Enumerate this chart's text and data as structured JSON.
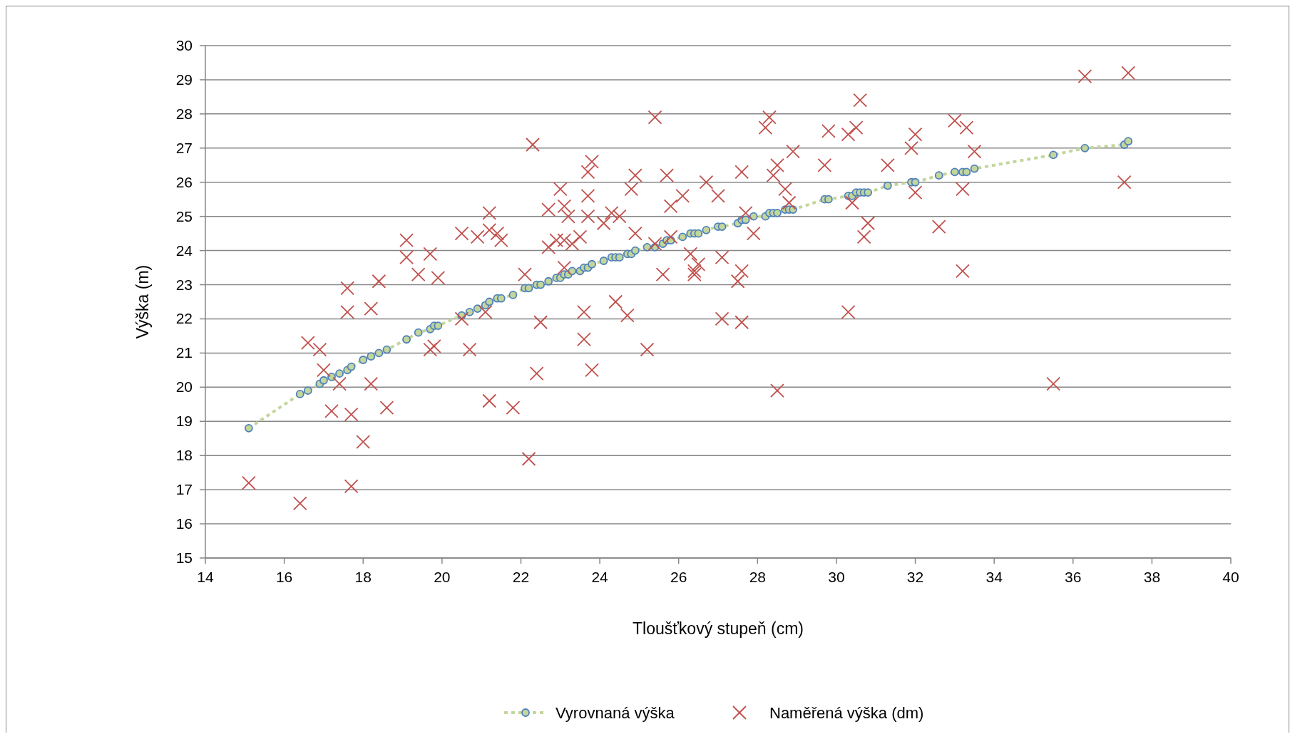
{
  "chart_data": {
    "type": "scatter",
    "xlabel": "Tloušťkový stupeň (cm)",
    "ylabel": "Výška (m)",
    "xlim": [
      14,
      40
    ],
    "xticks": [
      14,
      16,
      18,
      20,
      22,
      24,
      26,
      28,
      30,
      32,
      34,
      36,
      38,
      40
    ],
    "ylim": [
      15,
      30
    ],
    "yticks": [
      15,
      16,
      17,
      18,
      19,
      20,
      21,
      22,
      23,
      24,
      25,
      26,
      27,
      28,
      29,
      30
    ],
    "grid": "y",
    "legend": "bottom",
    "series": [
      {
        "name": "Vyrovnaná výška",
        "type": "line",
        "color": "#c3d69b",
        "marker": "circle",
        "line_style": "dotted",
        "x": [
          15.1,
          16.4,
          16.6,
          16.9,
          17.0,
          17.2,
          17.4,
          17.6,
          17.7,
          18.0,
          18.2,
          18.4,
          18.6,
          19.1,
          19.4,
          19.7,
          19.8,
          19.9,
          20.5,
          20.7,
          20.9,
          21.1,
          21.2,
          21.4,
          21.5,
          21.8,
          22.1,
          22.2,
          22.4,
          22.5,
          22.7,
          22.9,
          23.0,
          23.1,
          23.2,
          23.3,
          23.5,
          23.6,
          23.7,
          23.8,
          24.1,
          24.3,
          24.4,
          24.5,
          24.7,
          24.8,
          24.9,
          25.2,
          25.4,
          25.6,
          25.7,
          25.8,
          26.1,
          26.3,
          26.4,
          26.5,
          26.7,
          27.0,
          27.1,
          27.5,
          27.6,
          27.7,
          27.9,
          28.2,
          28.3,
          28.4,
          28.5,
          28.7,
          28.8,
          28.9,
          29.7,
          29.8,
          30.3,
          30.4,
          30.5,
          30.6,
          30.7,
          30.8,
          31.3,
          31.9,
          32.0,
          32.6,
          33.0,
          33.2,
          33.3,
          33.5,
          35.5,
          36.3,
          37.3,
          37.4
        ],
        "values": [
          18.8,
          19.8,
          19.9,
          20.1,
          20.2,
          20.3,
          20.4,
          20.5,
          20.6,
          20.8,
          20.9,
          21.0,
          21.1,
          21.4,
          21.6,
          21.7,
          21.8,
          21.8,
          22.1,
          22.2,
          22.3,
          22.4,
          22.5,
          22.6,
          22.6,
          22.7,
          22.9,
          22.9,
          23.0,
          23.0,
          23.1,
          23.2,
          23.2,
          23.3,
          23.3,
          23.4,
          23.4,
          23.5,
          23.5,
          23.6,
          23.7,
          23.8,
          23.8,
          23.8,
          23.9,
          23.9,
          24.0,
          24.1,
          24.1,
          24.2,
          24.3,
          24.3,
          24.4,
          24.5,
          24.5,
          24.5,
          24.6,
          24.7,
          24.7,
          24.8,
          24.9,
          24.9,
          25.0,
          25.0,
          25.1,
          25.1,
          25.1,
          25.2,
          25.2,
          25.2,
          25.5,
          25.5,
          25.6,
          25.6,
          25.7,
          25.7,
          25.7,
          25.7,
          25.9,
          26.0,
          26.0,
          26.2,
          26.3,
          26.3,
          26.3,
          26.4,
          26.8,
          27.0,
          27.1,
          27.2
        ]
      },
      {
        "name": "Naměřená výška (dm)",
        "color": "#c0504d",
        "marker": "cross",
        "x": [
          15.1,
          16.4,
          16.6,
          16.9,
          17.0,
          17.2,
          17.4,
          17.6,
          17.6,
          17.7,
          17.7,
          18.0,
          18.2,
          18.2,
          18.4,
          18.6,
          19.1,
          19.1,
          19.4,
          19.7,
          19.7,
          19.8,
          19.9,
          20.5,
          20.5,
          20.7,
          20.9,
          21.1,
          21.2,
          21.2,
          21.2,
          21.4,
          21.5,
          21.8,
          22.1,
          22.2,
          22.3,
          22.4,
          22.5,
          22.7,
          22.7,
          22.9,
          23.0,
          23.1,
          23.1,
          23.1,
          23.2,
          23.3,
          23.5,
          23.6,
          23.6,
          23.7,
          23.7,
          23.7,
          23.8,
          23.8,
          24.1,
          24.3,
          24.4,
          24.5,
          24.7,
          24.8,
          24.9,
          24.9,
          25.2,
          25.4,
          25.4,
          25.6,
          25.7,
          25.8,
          25.8,
          26.1,
          26.3,
          26.4,
          26.4,
          26.5,
          26.7,
          27.0,
          27.1,
          27.1,
          27.5,
          27.6,
          27.6,
          27.6,
          27.7,
          27.9,
          28.2,
          28.3,
          28.4,
          28.5,
          28.5,
          28.7,
          28.8,
          28.9,
          29.7,
          29.8,
          30.3,
          30.3,
          30.4,
          30.5,
          30.6,
          30.7,
          30.8,
          31.3,
          31.9,
          32.0,
          32.0,
          32.6,
          33.0,
          33.2,
          33.2,
          33.3,
          33.5,
          35.5,
          36.3,
          37.3,
          37.4
        ],
        "values": [
          17.2,
          16.6,
          21.3,
          21.1,
          20.5,
          19.3,
          20.1,
          22.9,
          22.2,
          19.2,
          17.1,
          18.4,
          22.3,
          20.1,
          23.1,
          19.4,
          24.3,
          23.8,
          23.3,
          23.9,
          21.1,
          21.2,
          23.2,
          24.5,
          22.0,
          21.1,
          24.4,
          22.2,
          25.1,
          24.6,
          19.6,
          24.5,
          24.3,
          19.4,
          23.3,
          17.9,
          27.1,
          20.4,
          21.9,
          25.2,
          24.1,
          24.3,
          25.8,
          25.3,
          24.3,
          23.5,
          25.0,
          24.2,
          24.4,
          22.2,
          21.4,
          26.3,
          25.6,
          25.0,
          26.6,
          20.5,
          24.8,
          25.1,
          22.5,
          25.0,
          22.1,
          25.8,
          26.2,
          24.5,
          21.1,
          27.9,
          24.2,
          23.3,
          26.2,
          25.3,
          24.4,
          25.6,
          23.9,
          23.4,
          23.3,
          23.6,
          26.0,
          25.6,
          23.8,
          22.0,
          23.1,
          26.3,
          23.4,
          21.9,
          25.1,
          24.5,
          27.6,
          27.9,
          26.2,
          26.5,
          19.9,
          25.8,
          25.4,
          26.9,
          26.5,
          27.5,
          27.4,
          22.2,
          25.4,
          27.6,
          28.4,
          24.4,
          24.8,
          26.5,
          27.0,
          27.4,
          25.7,
          24.7,
          27.8,
          25.8,
          23.4,
          27.6,
          26.9,
          20.1,
          29.1,
          26.0,
          29.2
        ]
      }
    ]
  }
}
